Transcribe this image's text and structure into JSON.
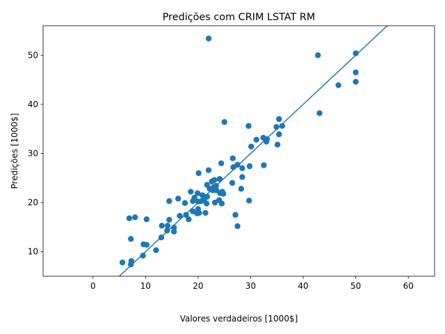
{
  "chart_data": {
    "type": "scatter",
    "title": "Predições com CRIM LSTAT RM",
    "xlabel": "Valores verdadeiros [1000$]",
    "ylabel": "Predições [1000$]",
    "xlim": [
      -9.5,
      65
    ],
    "ylim": [
      5,
      56
    ],
    "xticks": [
      0,
      10,
      20,
      30,
      40,
      50,
      60
    ],
    "yticks": [
      10,
      20,
      30,
      40,
      50
    ],
    "grid": false,
    "legend": "none",
    "color": "#1f77b4",
    "reference_line": {
      "slope": 1,
      "intercept": 0
    },
    "points": [
      [
        22.0,
        53.4
      ],
      [
        42.8,
        50.0
      ],
      [
        50.0,
        50.4
      ],
      [
        50.0,
        46.5
      ],
      [
        50.0,
        44.6
      ],
      [
        46.7,
        43.9
      ],
      [
        43.1,
        38.2
      ],
      [
        35.4,
        37.0
      ],
      [
        25.0,
        36.4
      ],
      [
        29.6,
        35.6
      ],
      [
        34.9,
        35.4
      ],
      [
        36.0,
        35.6
      ],
      [
        35.4,
        33.9
      ],
      [
        32.4,
        33.2
      ],
      [
        33.1,
        32.9
      ],
      [
        31.1,
        32.8
      ],
      [
        33.0,
        32.4
      ],
      [
        35.1,
        31.8
      ],
      [
        30.1,
        31.4
      ],
      [
        26.6,
        29.0
      ],
      [
        24.4,
        28.0
      ],
      [
        27.5,
        27.7
      ],
      [
        29.8,
        27.4
      ],
      [
        32.5,
        27.6
      ],
      [
        26.7,
        27.2
      ],
      [
        28.4,
        27.0
      ],
      [
        22.0,
        26.6
      ],
      [
        20.1,
        26.0
      ],
      [
        28.4,
        25.2
      ],
      [
        23.1,
        24.6
      ],
      [
        24.1,
        24.8
      ],
      [
        22.6,
        24.3
      ],
      [
        26.5,
        24.0
      ],
      [
        21.7,
        23.6
      ],
      [
        23.4,
        23.4
      ],
      [
        22.9,
        23.1
      ],
      [
        22.2,
        22.8
      ],
      [
        23.5,
        22.5
      ],
      [
        18.6,
        22.2
      ],
      [
        19.9,
        21.9
      ],
      [
        24.6,
        22.2
      ],
      [
        24.8,
        21.8
      ],
      [
        24.2,
        21.9
      ],
      [
        28.2,
        22.8
      ],
      [
        22.8,
        22.5
      ],
      [
        20.8,
        21.5
      ],
      [
        21.7,
        21.2
      ],
      [
        19.3,
        21.0
      ],
      [
        21.2,
        20.7
      ],
      [
        20.6,
        20.3
      ],
      [
        20.0,
        20.2
      ],
      [
        23.2,
        20.0
      ],
      [
        24.5,
        19.8
      ],
      [
        29.7,
        20.4
      ],
      [
        24.0,
        20.5
      ],
      [
        21.6,
        19.8
      ],
      [
        14.5,
        20.3
      ],
      [
        16.2,
        20.8
      ],
      [
        19.0,
        20.3
      ],
      [
        20.0,
        18.7
      ],
      [
        17.5,
        19.9
      ],
      [
        19.0,
        18.2
      ],
      [
        19.8,
        17.8
      ],
      [
        20.2,
        17.9
      ],
      [
        21.4,
        17.9
      ],
      [
        27.1,
        17.5
      ],
      [
        17.7,
        17.5
      ],
      [
        16.5,
        17.3
      ],
      [
        18.2,
        16.6
      ],
      [
        8.0,
        17.0
      ],
      [
        6.9,
        16.8
      ],
      [
        10.2,
        16.6
      ],
      [
        14.5,
        16.5
      ],
      [
        13.1,
        15.3
      ],
      [
        14.2,
        15.3
      ],
      [
        27.5,
        15.2
      ],
      [
        15.4,
        14.9
      ],
      [
        14.1,
        14.3
      ],
      [
        15.4,
        14.1
      ],
      [
        7.2,
        12.6
      ],
      [
        13.0,
        12.9
      ],
      [
        12.0,
        10.3
      ],
      [
        9.6,
        11.5
      ],
      [
        10.2,
        11.4
      ],
      [
        9.5,
        9.2
      ],
      [
        5.6,
        7.8
      ],
      [
        7.3,
        8.1
      ],
      [
        7.2,
        7.4
      ]
    ]
  }
}
